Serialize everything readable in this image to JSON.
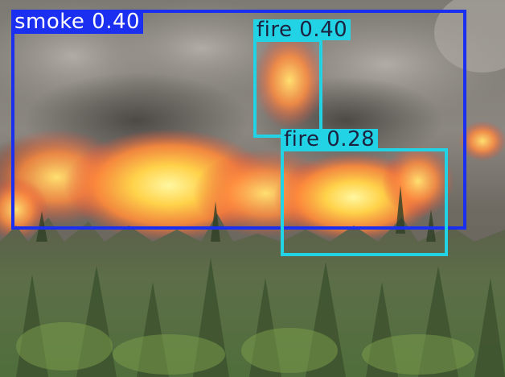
{
  "image": {
    "description_type": "wildfire-photo-with-object-detection-overlay"
  },
  "detections": [
    {
      "label": "smoke 0.40",
      "class": "smoke",
      "confidence": 0.4,
      "color": "#1a2ff0",
      "text_color": "#ffffff"
    },
    {
      "label": "fire 0.40",
      "class": "fire",
      "confidence": 0.4,
      "color": "#22d3e6",
      "text_color": "#1b2340"
    },
    {
      "label": "fire 0.28",
      "class": "fire",
      "confidence": 0.28,
      "color": "#22d3e6",
      "text_color": "#1b2340"
    }
  ]
}
